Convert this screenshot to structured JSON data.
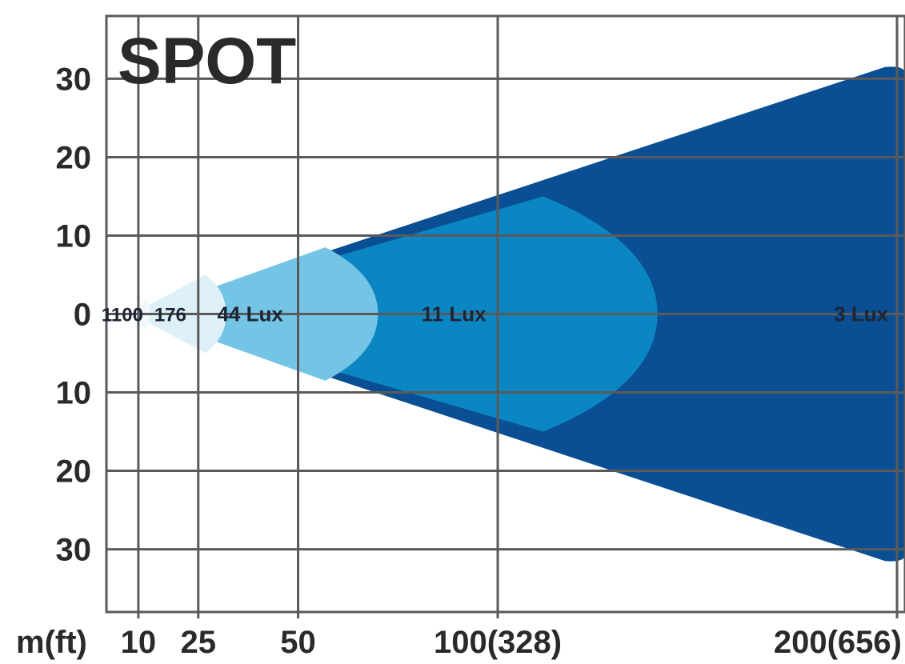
{
  "chart_data": {
    "type": "area",
    "title": "SPOT",
    "x_unit_label": "m(ft)",
    "x_ticks": [
      {
        "value": 10,
        "label": "10"
      },
      {
        "value": 25,
        "label": "25"
      },
      {
        "value": 50,
        "label": "50"
      },
      {
        "value": 100,
        "label": "100(328)"
      },
      {
        "value": 200,
        "label": "200(656)"
      }
    ],
    "y_ticks": [
      {
        "value": 30,
        "label": "30"
      },
      {
        "value": 20,
        "label": "20"
      },
      {
        "value": 10,
        "label": "10"
      },
      {
        "value": 0,
        "label": "0"
      },
      {
        "value": -10,
        "label": "10"
      },
      {
        "value": -20,
        "label": "20"
      },
      {
        "value": -30,
        "label": "30"
      }
    ],
    "xlim": [
      2,
      202
    ],
    "ylim": [
      -38,
      38
    ],
    "grid": true,
    "zones": [
      {
        "label": "3 Lux",
        "reach_m": 202,
        "halfwidth_m": 31.5,
        "color": "#0a4f93"
      },
      {
        "label": "11 Lux",
        "reach_m": 140,
        "halfwidth_m": 15,
        "color": "#0a87c2"
      },
      {
        "label": "44 Lux",
        "reach_m": 70,
        "halfwidth_m": 8.5,
        "color": "#74c4e6"
      },
      {
        "label": "176",
        "reach_m": 32,
        "halfwidth_m": 5,
        "color": "#ddf0f8"
      },
      {
        "label": "1100",
        "reach_m": 13,
        "halfwidth_m": 2,
        "color": "#f0f8fc"
      }
    ],
    "label_positions_m": [
      6,
      18,
      38,
      89,
      191
    ]
  }
}
